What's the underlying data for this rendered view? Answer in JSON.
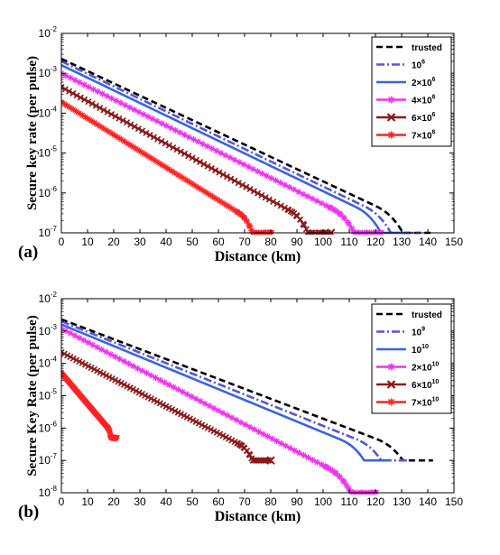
{
  "chart_data": [
    {
      "type": "line",
      "panel_label": "(a)",
      "xlabel": "Distance (km)",
      "ylabel": "Secure key rate (per pulse)",
      "xlim": [
        0,
        150
      ],
      "ylim": [
        1e-07,
        0.01
      ],
      "yscale": "log",
      "xticks": [
        "0",
        "10",
        "20",
        "30",
        "40",
        "50",
        "60",
        "70",
        "80",
        "90",
        "100",
        "110",
        "120",
        "130",
        "140",
        "150"
      ],
      "yticks": [
        {
          "base": "10",
          "exp": "-7"
        },
        {
          "base": "10",
          "exp": "-6"
        },
        {
          "base": "10",
          "exp": "-5"
        },
        {
          "base": "10",
          "exp": "-4"
        },
        {
          "base": "10",
          "exp": "-3"
        },
        {
          "base": "10",
          "exp": "-2"
        }
      ],
      "legend_location": "top-right",
      "series": [
        {
          "name": "trusted",
          "legend_main": "trusted",
          "legend_sup": "",
          "legend_tail": "",
          "color": "#000000",
          "style": "dashed",
          "marker": "none",
          "y0": 0.0023,
          "xcut": 142,
          "ymin": 1e-07
        },
        {
          "name": "10^6",
          "legend_main": "10",
          "legend_sup": "6",
          "legend_tail": "",
          "color": "#5555dd",
          "style": "dashdot",
          "marker": "none",
          "y0": 0.002,
          "xcut": 137,
          "ymin": 1e-07
        },
        {
          "name": "2×10^6",
          "legend_main": "2×10",
          "legend_sup": "6",
          "legend_tail": "",
          "color": "#3a63e0",
          "style": "solid",
          "marker": "none",
          "y0": 0.0016,
          "xcut": 133,
          "ymin": 1e-07
        },
        {
          "name": "4×10^6",
          "legend_main": "4×10",
          "legend_sup": "6",
          "legend_tail": "",
          "color": "#ee33ee",
          "style": "solid",
          "marker": "star",
          "y0": 0.001,
          "xcut": 122,
          "ymin": 1e-07
        },
        {
          "name": "6×10^6",
          "legend_main": "6×10",
          "legend_sup": "6",
          "legend_tail": "",
          "color": "#8b1a1a",
          "style": "solid",
          "marker": "x",
          "y0": 0.00045,
          "xcut": 103,
          "ymin": 1e-07
        },
        {
          "name": "7×10^6",
          "legend_main": "7×10",
          "legend_sup": "6",
          "legend_tail": "",
          "color": "#ff2222",
          "style": "solid",
          "marker": "star",
          "y0": 0.00019,
          "xcut": 80,
          "ymin": 1e-07
        }
      ]
    },
    {
      "type": "line",
      "panel_label": "(b)",
      "xlabel": "Distance (km)",
      "ylabel": "Secure Key Rate (per pulse)",
      "xlim": [
        0,
        150
      ],
      "ylim": [
        1e-08,
        0.01
      ],
      "yscale": "log",
      "xticks": [
        "0",
        "10",
        "20",
        "30",
        "40",
        "50",
        "60",
        "70",
        "80",
        "90",
        "100",
        "110",
        "120",
        "130",
        "140",
        "150"
      ],
      "yticks": [
        {
          "base": "10",
          "exp": "-8"
        },
        {
          "base": "10",
          "exp": "-7"
        },
        {
          "base": "10",
          "exp": "-6"
        },
        {
          "base": "10",
          "exp": "-5"
        },
        {
          "base": "10",
          "exp": "-4"
        },
        {
          "base": "10",
          "exp": "-3"
        },
        {
          "base": "10",
          "exp": "-2"
        }
      ],
      "legend_location": "top-right",
      "series": [
        {
          "name": "trusted",
          "legend_main": "trusted",
          "legend_sup": "",
          "legend_tail": "",
          "color": "#000000",
          "style": "dashed",
          "marker": "none",
          "y0": 0.0023,
          "xcut": 142,
          "ymin": 1e-07
        },
        {
          "name": "10^9",
          "legend_main": "10",
          "legend_sup": "9",
          "legend_tail": "",
          "color": "#5555dd",
          "style": "dashdot",
          "marker": "none",
          "y0": 0.002,
          "xcut": 133,
          "ymin": 1e-07
        },
        {
          "name": "10^10",
          "legend_main": "10",
          "legend_sup": "10",
          "legend_tail": "",
          "color": "#3a63e0",
          "style": "solid",
          "marker": "none",
          "y0": 0.0016,
          "xcut": 126,
          "ymin": 1e-07
        },
        {
          "name": "2×10^10",
          "legend_main": "2×10",
          "legend_sup": "10",
          "legend_tail": "",
          "color": "#ee33ee",
          "style": "solid",
          "marker": "star",
          "y0": 0.0012,
          "xcut": 120,
          "ymin": 1e-08
        },
        {
          "name": "6×10^10",
          "legend_main": "6×10",
          "legend_sup": "10",
          "legend_tail": "",
          "color": "#8b1a1a",
          "style": "solid",
          "marker": "x",
          "y0": 0.00022,
          "xcut": 80,
          "ymin": 1e-07
        },
        {
          "name": "7×10^10",
          "legend_main": "7×10",
          "legend_sup": "10",
          "legend_tail": "",
          "color": "#ff2222",
          "style": "solid",
          "marker": "star",
          "y0": 5e-05,
          "xcut": 21,
          "ymin": 5e-07
        }
      ]
    }
  ]
}
